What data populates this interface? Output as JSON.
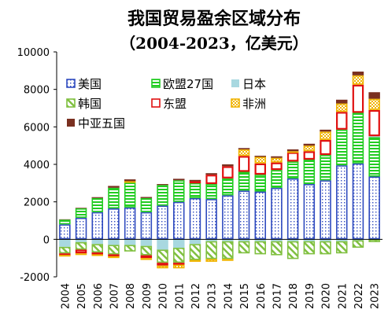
{
  "chart_data": {
    "type": "bar",
    "stacked": true,
    "title": "我国贸易盈余区域分布",
    "subtitle": "（2004-2023，亿美元）",
    "xlabel": "",
    "ylabel": "",
    "ylim": [
      -2000,
      10000
    ],
    "yticks": [
      -2000,
      0,
      2000,
      4000,
      6000,
      8000,
      10000
    ],
    "grid": false,
    "legend_position": "top-left",
    "categories": [
      "2004",
      "2005",
      "2006",
      "2007",
      "2008",
      "2009",
      "2010",
      "2011",
      "2012",
      "2013",
      "2014",
      "2015",
      "2016",
      "2017",
      "2018",
      "2019",
      "2020",
      "2021",
      "2022",
      "2023"
    ],
    "series": [
      {
        "name": "美国",
        "color": "#2f4bbf",
        "pattern": "dots",
        "values": [
          800,
          1150,
          1450,
          1650,
          1700,
          1450,
          1800,
          2000,
          2200,
          2150,
          2350,
          2600,
          2550,
          2750,
          3250,
          2950,
          3150,
          3950,
          4050,
          3350
        ]
      },
      {
        "name": "欧盟27国",
        "color": "#22cc22",
        "pattern": "hlines",
        "values": [
          250,
          500,
          750,
          1100,
          1350,
          750,
          1100,
          1150,
          800,
          800,
          900,
          1000,
          900,
          950,
          900,
          1300,
          1350,
          1900,
          2700,
          2100
        ]
      },
      {
        "name": "日本",
        "color": "#a8d8e0",
        "pattern": "solid",
        "values": [
          -400,
          -150,
          -250,
          -300,
          -300,
          -350,
          -550,
          -450,
          -250,
          -100,
          -100,
          -100,
          -100,
          -100,
          -100,
          -100,
          -100,
          -100,
          -50,
          50
        ]
      },
      {
        "name": "韩国",
        "color": "#80c040",
        "pattern": "diag",
        "values": [
          -350,
          -400,
          -450,
          -500,
          -350,
          -500,
          -700,
          -800,
          -850,
          -950,
          -950,
          -650,
          -700,
          -750,
          -950,
          -700,
          -700,
          -650,
          -400,
          -150
        ]
      },
      {
        "name": "东盟",
        "color": "#e01010",
        "pattern": "hollow",
        "values": [
          -80,
          -200,
          -100,
          -100,
          0,
          -150,
          -150,
          -100,
          100,
          500,
          650,
          850,
          600,
          400,
          500,
          450,
          800,
          950,
          1500,
          1400
        ]
      },
      {
        "name": "非洲",
        "color": "#f0b400",
        "pattern": "checker",
        "values": [
          -50,
          -20,
          -50,
          -100,
          50,
          -100,
          -150,
          -200,
          -100,
          -150,
          -100,
          350,
          350,
          250,
          50,
          300,
          450,
          450,
          500,
          600
        ]
      },
      {
        "name": "中亚五国",
        "color": "#7a3020",
        "pattern": "solid",
        "values": [
          20,
          30,
          50,
          100,
          100,
          60,
          50,
          80,
          70,
          80,
          100,
          70,
          60,
          80,
          100,
          100,
          100,
          200,
          200,
          350
        ]
      }
    ]
  }
}
